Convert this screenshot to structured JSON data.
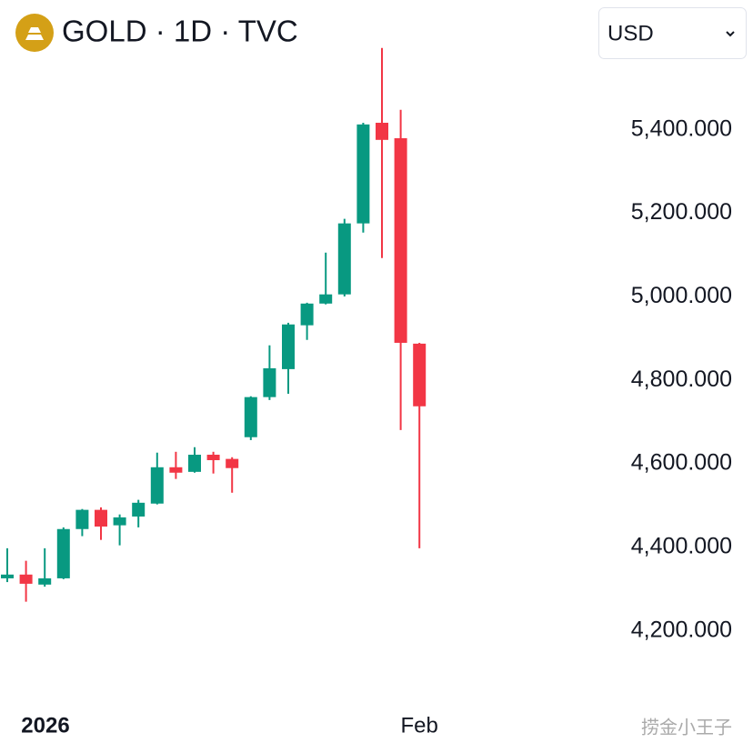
{
  "header": {
    "title": "GOLD · 1D · TVC",
    "currency": "USD"
  },
  "watermark": "捞金小王子",
  "chart_data": {
    "type": "candlestick",
    "categories": [
      null,
      null,
      "2026",
      null,
      null,
      null,
      null,
      null,
      null,
      null,
      null,
      null,
      null,
      null,
      null,
      null,
      null,
      null,
      null,
      null,
      null,
      null,
      "Feb"
    ],
    "open": [
      4326,
      4335,
      4311,
      4326,
      4444,
      4490,
      4453,
      4474,
      4505,
      4592,
      4581,
      4622,
      4612,
      4664,
      4760,
      4827,
      4932,
      4984,
      5006,
      5176,
      5417,
      5380,
      4888
    ],
    "high": [
      4398,
      4368,
      4398,
      4448,
      4492,
      4496,
      4479,
      4514,
      4627,
      4629,
      4640,
      4629,
      4616,
      4762,
      4884,
      4938,
      4986,
      5106,
      5187,
      5417,
      5596,
      5448,
      4890
    ],
    "low": [
      4317,
      4270,
      4306,
      4324,
      4427,
      4418,
      4405,
      4448,
      4503,
      4564,
      4579,
      4577,
      4531,
      4657,
      4753,
      4768,
      4897,
      4982,
      5001,
      5154,
      5093,
      4681,
      4398
    ],
    "close": [
      4335,
      4313,
      4326,
      4444,
      4490,
      4450,
      4472,
      4507,
      4592,
      4579,
      4622,
      4609,
      4590,
      4760,
      4829,
      4934,
      4984,
      5006,
      5176,
      5413,
      5376,
      4890,
      4738
    ],
    "up_color": "#089981",
    "down_color": "#f23645",
    "ylim": [
      4034,
      5711
    ],
    "yticks": [
      {
        "value": 4200,
        "label": "4,200.000"
      },
      {
        "value": 4400,
        "label": "4,400.000"
      },
      {
        "value": 4600,
        "label": "4,600.000"
      },
      {
        "value": 4800,
        "label": "4,800.000"
      },
      {
        "value": 5000,
        "label": "5,000.000"
      },
      {
        "value": 5200,
        "label": "5,200.000"
      },
      {
        "value": 5400,
        "label": "5,400.000"
      }
    ],
    "grid": false
  }
}
